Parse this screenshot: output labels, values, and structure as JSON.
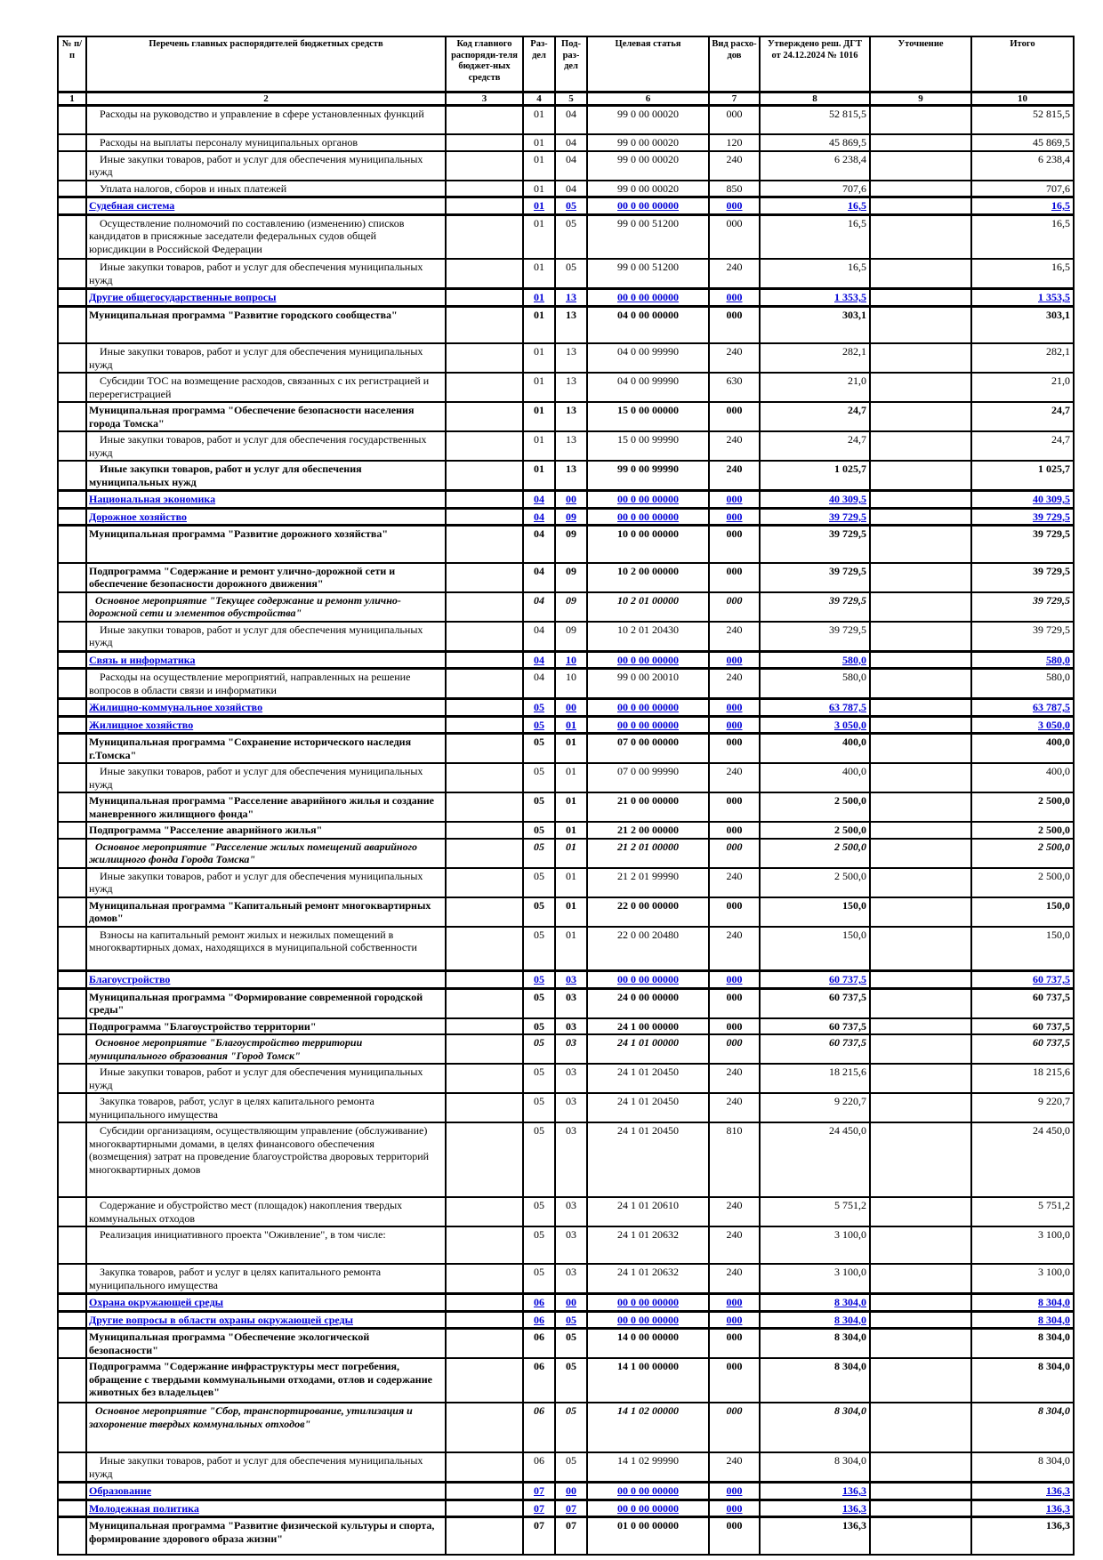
{
  "colors": {
    "section_text": "#0000d6",
    "grid": "#000000",
    "page_bg": "#ffffff"
  },
  "header": {
    "columns": [
      {
        "label": "№ п/п",
        "num": "1"
      },
      {
        "label": "Перечень главных распорядителей бюджетных средств",
        "num": "2"
      },
      {
        "label": "Код главного распоряди-теля бюджет-ных средств",
        "num": "3"
      },
      {
        "label": "Раз-дел",
        "num": "4"
      },
      {
        "label": "Под-раз-дел",
        "num": "5"
      },
      {
        "label": "Целевая статья",
        "num": "6"
      },
      {
        "label": "Вид расхо-дов",
        "num": "7"
      },
      {
        "label": "Утверждено реш. ДГТ от 24.12.2024 № 1016",
        "num": "8"
      },
      {
        "label": "Уточнение",
        "num": "9"
      },
      {
        "label": "Итого",
        "num": "10"
      }
    ]
  },
  "rows": [
    {
      "name": "Расходы на руководство и управление в сфере установленных функций",
      "style": "detail",
      "size": "s2",
      "rz": "01",
      "pr": "04",
      "csr": "99 0 00 00020",
      "vr": "000",
      "approved": "52 815,5",
      "total": "52 815,5"
    },
    {
      "name": "Расходы на выплаты персоналу муниципальных органов",
      "style": "detail",
      "size": "s1",
      "rz": "01",
      "pr": "04",
      "csr": "99 0 00 00020",
      "vr": "120",
      "approved": "45 869,5",
      "total": "45 869,5"
    },
    {
      "name": "Иные закупки товаров, работ и услуг для обеспечения муниципальных нужд",
      "style": "detail",
      "size": "s2",
      "rz": "01",
      "pr": "04",
      "csr": "99 0 00 00020",
      "vr": "240",
      "approved": "6 238,4",
      "total": "6 238,4"
    },
    {
      "name": "Уплата налогов, сборов и иных платежей",
      "style": "detail",
      "size": "s1",
      "rz": "01",
      "pr": "04",
      "csr": "99 0 00 00020",
      "vr": "850",
      "approved": "707,6",
      "total": "707,6"
    },
    {
      "name": "Судебная система",
      "style": "section",
      "size": "s1",
      "rz": "01",
      "pr": "05",
      "csr": "00 0 00 00000",
      "vr": "000",
      "approved": "16,5",
      "total": "16,5"
    },
    {
      "name": "Осуществление полномочий по составлению (изменению) списков кандидатов в присяжные заседатели федеральных судов общей юрисдикции в Российской Федерации",
      "style": "detail",
      "size": "s3",
      "rz": "01",
      "pr": "05",
      "csr": "99 0 00 51200",
      "vr": "000",
      "approved": "16,5",
      "total": "16,5"
    },
    {
      "name": "Иные закупки товаров, работ и услуг для обеспечения муниципальных нужд",
      "style": "detail",
      "size": "s2",
      "rz": "01",
      "pr": "05",
      "csr": "99 0 00 51200",
      "vr": "240",
      "approved": "16,5",
      "total": "16,5"
    },
    {
      "name": "Другие общегосударственные вопросы",
      "style": "section",
      "size": "s1",
      "rz": "01",
      "pr": "13",
      "csr": "00 0 00 00000",
      "vr": "000",
      "approved": "1 353,5",
      "total": "1 353,5"
    },
    {
      "name": "Муниципальная программа \"Развитие городского сообщества\"",
      "style": "program",
      "size": "s2t",
      "rz": "01",
      "pr": "13",
      "csr": "04 0 00 00000",
      "vr": "000",
      "approved": "303,1",
      "total": "303,1"
    },
    {
      "name": "Иные закупки товаров, работ и услуг для обеспечения муниципальных нужд",
      "style": "detail",
      "size": "s2",
      "rz": "01",
      "pr": "13",
      "csr": "04 0 00 99990",
      "vr": "240",
      "approved": "282,1",
      "total": "282,1"
    },
    {
      "name": "Субсидии ТОС на возмещение расходов, связанных с их регистрацией и перерегистрацией",
      "style": "detail",
      "size": "s2",
      "rz": "01",
      "pr": "13",
      "csr": "04 0 00 99990",
      "vr": "630",
      "approved": "21,0",
      "total": "21,0"
    },
    {
      "name": "Муниципальная программа \"Обеспечение безопасности населения города Томска\"",
      "style": "program",
      "size": "s2",
      "rz": "01",
      "pr": "13",
      "csr": "15 0 00 00000",
      "vr": "000",
      "approved": "24,7",
      "total": "24,7"
    },
    {
      "name": "Иные закупки товаров, работ и услуг для обеспечения государственных нужд",
      "style": "detail",
      "size": "s2",
      "rz": "01",
      "pr": "13",
      "csr": "15 0 00 99990",
      "vr": "240",
      "approved": "24,7",
      "total": "24,7"
    },
    {
      "name": "Иные закупки товаров, работ и услуг для обеспечения муниципальных нужд",
      "style": "detail_bold",
      "size": "s2",
      "rz": "01",
      "pr": "13",
      "csr": "99 0 00 99990",
      "vr": "240",
      "approved": "1 025,7",
      "total": "1 025,7"
    },
    {
      "name": "Национальная экономика",
      "style": "section",
      "size": "s1",
      "rz": "04",
      "pr": "00",
      "csr": "00 0 00 00000",
      "vr": "000",
      "approved": "40 309,5",
      "total": "40 309,5"
    },
    {
      "name": "Дорожное хозяйство",
      "style": "section",
      "size": "s1",
      "rz": "04",
      "pr": "09",
      "csr": "00 0 00 00000",
      "vr": "000",
      "approved": "39 729,5",
      "total": "39 729,5"
    },
    {
      "name": "Муниципальная программа \"Развитие дорожного хозяйства\"",
      "style": "program",
      "size": "s2t",
      "rz": "04",
      "pr": "09",
      "csr": "10 0 00 00000",
      "vr": "000",
      "approved": "39 729,5",
      "total": "39 729,5"
    },
    {
      "name": "Подпрограмма \"Содержание и ремонт улично-дорожной сети и обеспечение безопасности дорожного движения\"",
      "style": "program",
      "size": "s2",
      "rz": "04",
      "pr": "09",
      "csr": "10 2 00 00000",
      "vr": "000",
      "approved": "39 729,5",
      "total": "39 729,5"
    },
    {
      "name": "Основное мероприятие \"Текущее содержание и ремонт улично-дорожной сети и элементов обустройства\"",
      "style": "event",
      "size": "s2",
      "rz": "04",
      "pr": "09",
      "csr": "10 2 01 00000",
      "vr": "000",
      "approved": "39 729,5",
      "total": "39 729,5"
    },
    {
      "name": "Иные закупки товаров, работ и услуг для обеспечения муниципальных нужд",
      "style": "detail",
      "size": "s2",
      "rz": "04",
      "pr": "09",
      "csr": "10 2 01 20430",
      "vr": "240",
      "approved": "39 729,5",
      "total": "39 729,5"
    },
    {
      "name": "Связь и информатика",
      "style": "section",
      "size": "s1",
      "rz": "04",
      "pr": "10",
      "csr": "00 0 00 00000",
      "vr": "000",
      "approved": "580,0",
      "total": "580,0"
    },
    {
      "name": "Расходы на осуществление мероприятий, направленных на решение вопросов в области связи и информатики",
      "style": "detail",
      "size": "s2",
      "rz": "04",
      "pr": "10",
      "csr": "99 0 00 20010",
      "vr": "240",
      "approved": "580,0",
      "total": "580,0"
    },
    {
      "name": "Жилищно-коммунальное хозяйство",
      "style": "section",
      "size": "s1",
      "rz": "05",
      "pr": "00",
      "csr": "00 0 00 00000",
      "vr": "000",
      "approved": "63 787,5",
      "total": "63 787,5"
    },
    {
      "name": "Жилищное хозяйство",
      "style": "section",
      "size": "s1",
      "rz": "05",
      "pr": "01",
      "csr": "00 0 00 00000",
      "vr": "000",
      "approved": "3 050,0",
      "total": "3 050,0"
    },
    {
      "name": "Муниципальная программа \"Сохранение исторического наследия г.Томска\"",
      "style": "program",
      "size": "s2",
      "rz": "05",
      "pr": "01",
      "csr": "07 0 00 00000",
      "vr": "000",
      "approved": "400,0",
      "total": "400,0"
    },
    {
      "name": "Иные закупки товаров, работ и услуг для обеспечения муниципальных нужд",
      "style": "detail",
      "size": "s2",
      "rz": "05",
      "pr": "01",
      "csr": "07 0 00 99990",
      "vr": "240",
      "approved": "400,0",
      "total": "400,0"
    },
    {
      "name": "Муниципальная программа \"Расселение аварийного жилья и создание маневренного жилищного фонда\"",
      "style": "program",
      "size": "s2",
      "rz": "05",
      "pr": "01",
      "csr": "21 0 00 00000",
      "vr": "000",
      "approved": "2 500,0",
      "total": "2 500,0"
    },
    {
      "name": "Подпрограмма \"Расселение аварийного жилья\"",
      "style": "program",
      "size": "s1",
      "rz": "05",
      "pr": "01",
      "csr": "21 2 00 00000",
      "vr": "000",
      "approved": "2 500,0",
      "total": "2 500,0"
    },
    {
      "name": "Основное мероприятие \"Расселение жилых помещений аварийного жилищного фонда Города Томска\"",
      "style": "event",
      "size": "s2",
      "rz": "05",
      "pr": "01",
      "csr": "21 2 01 00000",
      "vr": "000",
      "approved": "2 500,0",
      "total": "2 500,0"
    },
    {
      "name": "Иные закупки товаров, работ и услуг для обеспечения муниципальных нужд",
      "style": "detail",
      "size": "s2",
      "rz": "05",
      "pr": "01",
      "csr": "21 2 01 99990",
      "vr": "240",
      "approved": "2 500,0",
      "total": "2 500,0"
    },
    {
      "name": "Муниципальная программа \"Капитальный ремонт многоквартирных домов\"",
      "style": "program",
      "size": "s2",
      "rz": "05",
      "pr": "01",
      "csr": "22 0 00 00000",
      "vr": "000",
      "approved": "150,0",
      "total": "150,0"
    },
    {
      "name": "Взносы на капитальный ремонт жилых и нежилых помещений в многоквартирных домах, находящихся в муниципальной собственности",
      "style": "detail",
      "size": "s3",
      "rz": "05",
      "pr": "01",
      "csr": "22 0 00 20480",
      "vr": "240",
      "approved": "150,0",
      "total": "150,0"
    },
    {
      "name": "Благоустройство",
      "style": "section",
      "size": "s1",
      "rz": "05",
      "pr": "03",
      "csr": "00 0 00 00000",
      "vr": "000",
      "approved": "60 737,5",
      "total": "60 737,5"
    },
    {
      "name": "Муниципальная программа \"Формирование современной городской среды\"",
      "style": "program",
      "size": "s2",
      "rz": "05",
      "pr": "03",
      "csr": "24 0 00 00000",
      "vr": "000",
      "approved": "60 737,5",
      "total": "60 737,5"
    },
    {
      "name": "Подпрограмма \"Благоустройство территории\"",
      "style": "program",
      "size": "s1",
      "rz": "05",
      "pr": "03",
      "csr": "24 1 00 00000",
      "vr": "000",
      "approved": "60 737,5",
      "total": "60 737,5"
    },
    {
      "name": "Основное мероприятие \"Благоустройство территории муниципального образования \"Город Томск\"",
      "style": "event",
      "size": "s2",
      "rz": "05",
      "pr": "03",
      "csr": "24 1 01 00000",
      "vr": "000",
      "approved": "60 737,5",
      "total": "60 737,5"
    },
    {
      "name": "Иные закупки товаров, работ и услуг для обеспечения муниципальных нужд",
      "style": "detail",
      "size": "s2",
      "rz": "05",
      "pr": "03",
      "csr": "24 1 01 20450",
      "vr": "240",
      "approved": "18 215,6",
      "total": "18 215,6"
    },
    {
      "name": "Закупка товаров, работ, услуг в целях капитального ремонта муниципального имущества",
      "style": "detail",
      "size": "s2",
      "rz": "05",
      "pr": "03",
      "csr": "24 1 01 20450",
      "vr": "240",
      "approved": "9 220,7",
      "total": "9 220,7"
    },
    {
      "name": "Субсидии организациям, осуществляющим управление (обслуживание)  многоквартирными домами, в целях финансового обеспечения (возмещения) затрат на проведение благоустройства дворовых территорий многоквартирных домов",
      "style": "detail",
      "size": "s5",
      "rz": "05",
      "pr": "03",
      "csr": "24 1 01 20450",
      "vr": "810",
      "approved": "24 450,0",
      "total": "24 450,0"
    },
    {
      "name": "Содержание и обустройство мест (площадок) накопления твердых коммунальных отходов",
      "style": "detail",
      "size": "s2",
      "rz": "05",
      "pr": "03",
      "csr": "24 1 01 20610",
      "vr": "240",
      "approved": "5 751,2",
      "total": "5 751,2"
    },
    {
      "name": "Реализация инициативного проекта \"Оживление\", в том числе:",
      "style": "detail",
      "size": "s2t",
      "rz": "05",
      "pr": "03",
      "csr": "24 1 01 20632",
      "vr": "240",
      "approved": "3 100,0",
      "total": "3 100,0"
    },
    {
      "name": "Закупка товаров, работ и услуг в целях капитального ремонта муниципального имущества",
      "style": "detail",
      "size": "s2",
      "rz": "05",
      "pr": "03",
      "csr": "24 1 01 20632",
      "vr": "240",
      "approved": "3 100,0",
      "total": "3 100,0"
    },
    {
      "name": "Охрана окружающей среды",
      "style": "section",
      "size": "s1",
      "rz": "06",
      "pr": "00",
      "csr": "00 0 00 00000",
      "vr": "000",
      "approved": "8 304,0",
      "total": "8 304,0"
    },
    {
      "name": "Другие вопросы в области охраны окружающей среды",
      "style": "section",
      "size": "s1",
      "rz": "06",
      "pr": "05",
      "csr": "00 0 00 00000",
      "vr": "000",
      "approved": "8 304,0",
      "total": "8 304,0"
    },
    {
      "name": "Муниципальная программа \"Обеспечение экологической безопасности\"",
      "style": "program",
      "size": "s2",
      "rz": "06",
      "pr": "05",
      "csr": "14 0 00 00000",
      "vr": "000",
      "approved": "8 304,0",
      "total": "8 304,0"
    },
    {
      "name": "Подпрограмма \"Содержание инфраструктуры мест погребения, обращение с твердыми коммунальными отходами, отлов и содержание животных без владельцев\"",
      "style": "program",
      "size": "s3",
      "rz": "06",
      "pr": "05",
      "csr": "14 1 00 00000",
      "vr": "000",
      "approved": "8 304,0",
      "total": "8 304,0"
    },
    {
      "name": "Основное мероприятие \"Сбор, транспортирование, утилизация и захоронение твердых коммунальных отходов\"",
      "style": "event",
      "size": "s3t",
      "rz": "06",
      "pr": "05",
      "csr": "14 1 02 00000",
      "vr": "000",
      "approved": "8 304,0",
      "total": "8 304,0"
    },
    {
      "name": "Иные закупки товаров, работ и услуг для обеспечения муниципальных нужд",
      "style": "detail",
      "size": "s2",
      "rz": "06",
      "pr": "05",
      "csr": "14 1 02 99990",
      "vr": "240",
      "approved": "8 304,0",
      "total": "8 304,0"
    },
    {
      "name": "Образование",
      "style": "section",
      "size": "s1",
      "rz": "07",
      "pr": "00",
      "csr": "00 0 00 00000",
      "vr": "000",
      "approved": "136,3",
      "total": "136,3"
    },
    {
      "name": "Молодежная политика",
      "style": "section",
      "size": "s1",
      "rz": "07",
      "pr": "07",
      "csr": "00 0 00 00000",
      "vr": "000",
      "approved": "136,3",
      "total": "136,3"
    },
    {
      "name": "Муниципальная программа \"Развитие физической культуры и спорта, формирование здорового образа жизни\"",
      "style": "program",
      "size": "s2t",
      "rz": "07",
      "pr": "07",
      "csr": "01 0 00 00000",
      "vr": "000",
      "approved": "136,3",
      "total": "136,3"
    }
  ]
}
